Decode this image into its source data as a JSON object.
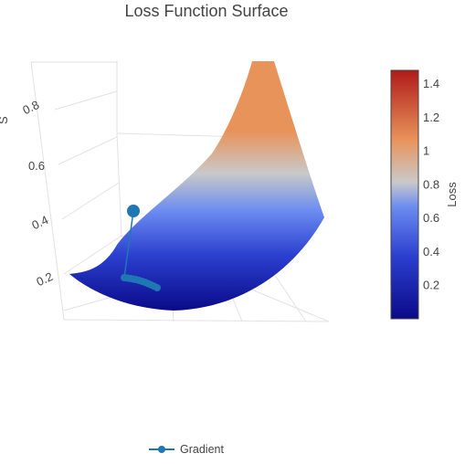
{
  "chart_data": {
    "type": "surface",
    "title": "Loss Function Surface",
    "z_axis": {
      "title": "",
      "tick_labels": [
        "0.2",
        "0.4",
        "0.6",
        "0.8"
      ],
      "range": [
        0.1,
        0.9
      ]
    },
    "x_axis_title_fragment": "S",
    "colorbar": {
      "title": "Loss",
      "tick_values": [
        0.2,
        0.4,
        0.6,
        0.8,
        1.0,
        1.2,
        1.4
      ],
      "tick_labels": [
        "0.2",
        "0.4",
        "0.6",
        "0.8",
        "1",
        "1.2",
        "1.4"
      ],
      "range": [
        0.0,
        1.48
      ],
      "colorscale": [
        [
          0.0,
          "#0a0a88"
        ],
        [
          0.25,
          "#2b3fcf"
        ],
        [
          0.45,
          "#6b8cf0"
        ],
        [
          0.55,
          "#c9c9c9"
        ],
        [
          0.72,
          "#e8935a"
        ],
        [
          1.0,
          "#b01a1a"
        ]
      ]
    },
    "series": [
      {
        "name": "Gradient",
        "type": "scatter3d",
        "color": "#1f77b4",
        "start_loss": 0.42,
        "end_loss": 0.17,
        "num_steps": 12
      }
    ],
    "legend": {
      "placement": "bottom-center"
    }
  }
}
